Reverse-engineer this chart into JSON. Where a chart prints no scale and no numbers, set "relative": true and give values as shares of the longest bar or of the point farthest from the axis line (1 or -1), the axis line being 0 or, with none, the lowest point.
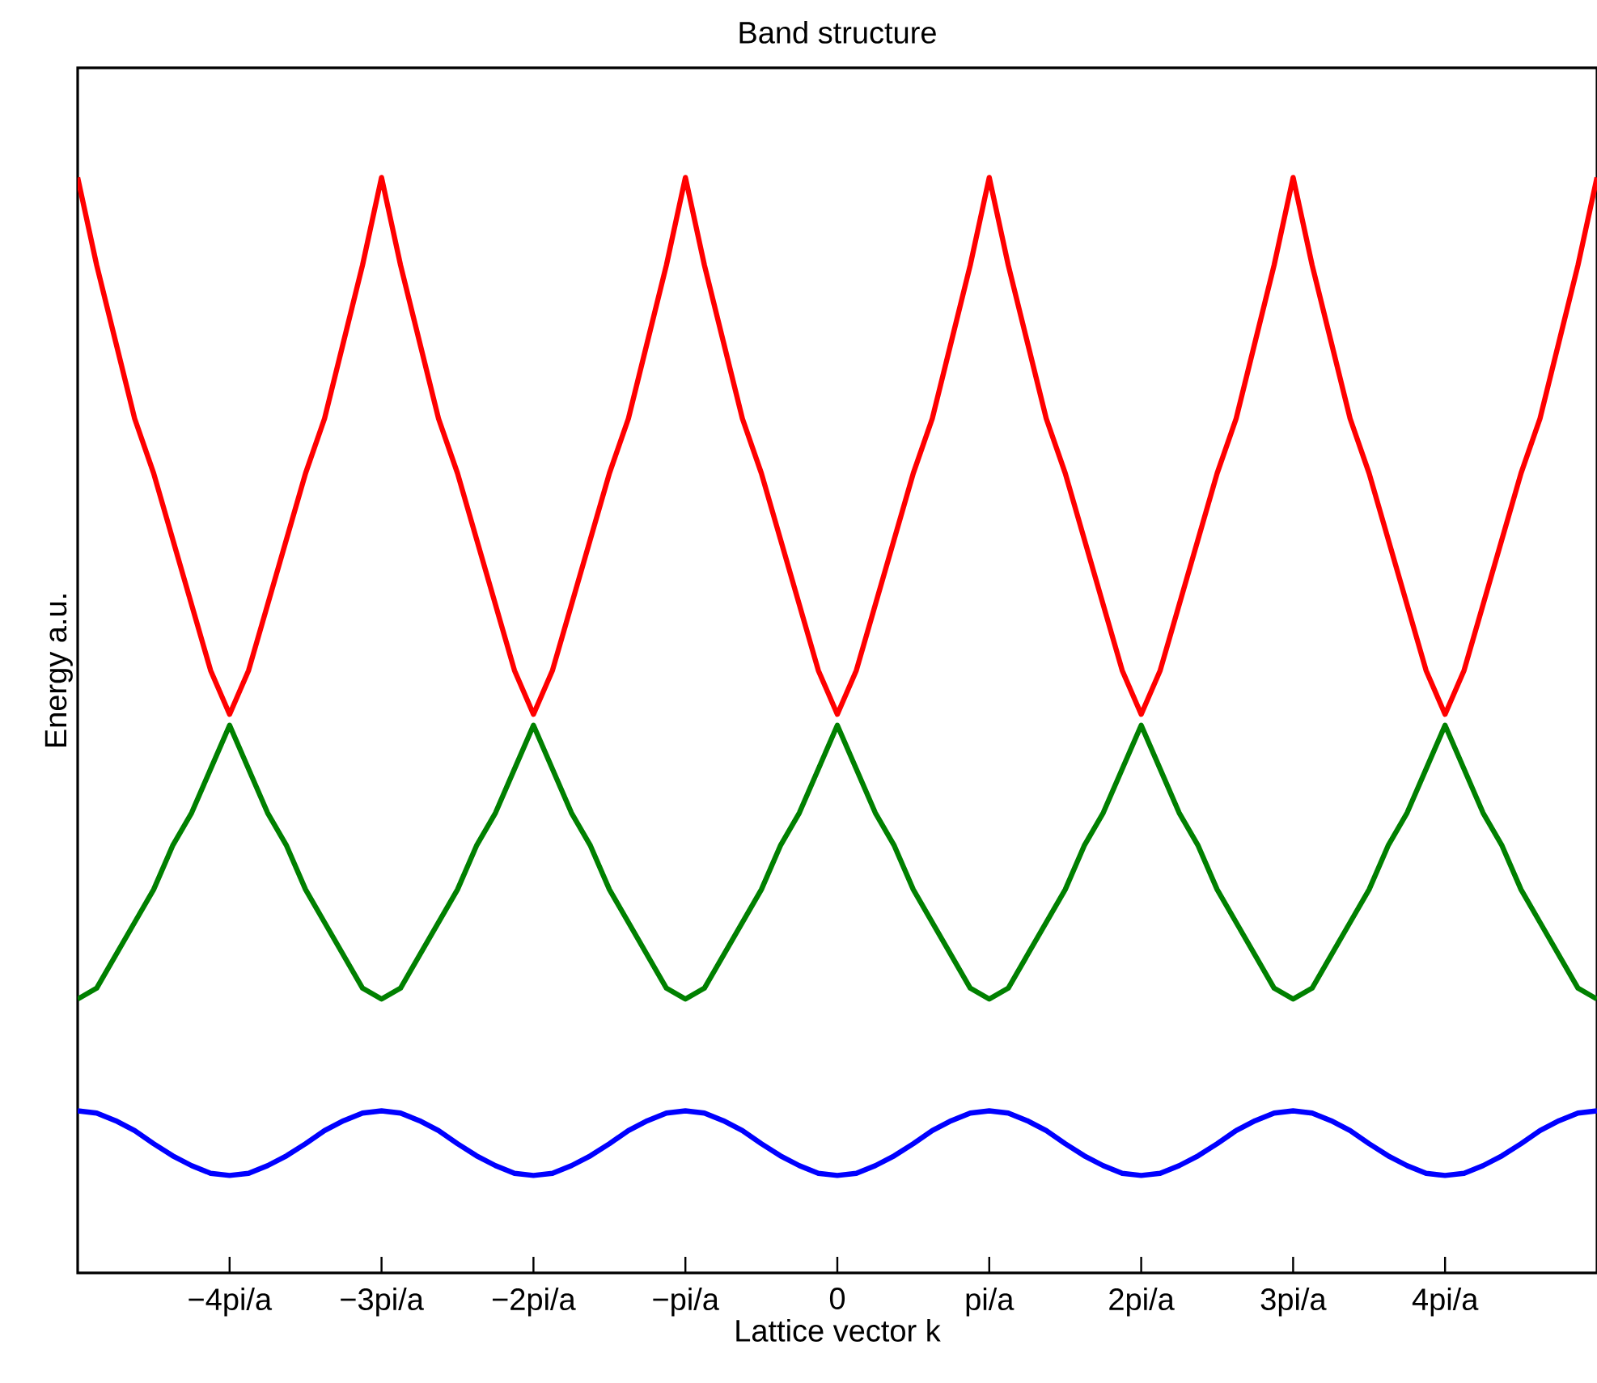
{
  "chart_data": {
    "type": "line",
    "title": "Band structure",
    "xlabel": "Lattice vector k",
    "ylabel": "Energy a.u.",
    "relative": true,
    "xlim": [
      -5,
      5
    ],
    "xticks": [
      {
        "value": -4,
        "label": "−4pi/a"
      },
      {
        "value": -3,
        "label": "−3pi/a"
      },
      {
        "value": -2,
        "label": "−2pi/a"
      },
      {
        "value": -1,
        "label": "−pi/a"
      },
      0,
      {
        "value": 1,
        "label": "pi/a"
      },
      {
        "value": 2,
        "label": "2pi/a"
      },
      {
        "value": 3,
        "label": "3pi/a"
      },
      {
        "value": 4,
        "label": "4pi/a"
      }
    ],
    "grid": false,
    "marker": "none",
    "line_style": "solid",
    "x": [
      -5,
      -4.875,
      -4.75,
      -4.625,
      -4.5,
      -4.375,
      -4.25,
      -4.125,
      -4,
      -3.875,
      -3.75,
      -3.625,
      -3.5,
      -3.375,
      -3.25,
      -3.125,
      -3,
      -2.875,
      -2.75,
      -2.625,
      -2.5,
      -2.375,
      -2.25,
      -2.125,
      -2,
      -1.875,
      -1.75,
      -1.625,
      -1.5,
      -1.375,
      -1.25,
      -1.125,
      -1,
      -0.875,
      -0.75,
      -0.625,
      -0.5,
      -0.375,
      -0.25,
      -0.125,
      0,
      0.125,
      0.25,
      0.375,
      0.5,
      0.625,
      0.75,
      0.875,
      1,
      1.125,
      1.25,
      1.375,
      1.5,
      1.625,
      1.75,
      1.875,
      2,
      2.125,
      2.25,
      2.375,
      2.5,
      2.625,
      2.75,
      2.875,
      3,
      3.125,
      3.25,
      3.375,
      3.5,
      3.625,
      3.75,
      3.875,
      4,
      4.125,
      4.25,
      4.375,
      4.5,
      4.625,
      4.75,
      4.875,
      5
    ],
    "series": [
      {
        "color": "#ff0000",
        "values": [
          1,
          0.92,
          0.85,
          0.78,
          0.73,
          0.67,
          0.61,
          0.55,
          0.51,
          0.55,
          0.61,
          0.67,
          0.73,
          0.78,
          0.85,
          0.92,
          1,
          0.92,
          0.85,
          0.78,
          0.73,
          0.67,
          0.61,
          0.55,
          0.51,
          0.55,
          0.61,
          0.67,
          0.73,
          0.78,
          0.85,
          0.92,
          1,
          0.92,
          0.85,
          0.78,
          0.73,
          0.67,
          0.61,
          0.55,
          0.51,
          0.55,
          0.61,
          0.67,
          0.73,
          0.78,
          0.85,
          0.92,
          1,
          0.92,
          0.85,
          0.78,
          0.73,
          0.67,
          0.61,
          0.55,
          0.51,
          0.55,
          0.61,
          0.67,
          0.73,
          0.78,
          0.85,
          0.92,
          1,
          0.92,
          0.85,
          0.78,
          0.73,
          0.67,
          0.61,
          0.55,
          0.51,
          0.55,
          0.61,
          0.67,
          0.73,
          0.78,
          0.85,
          0.92,
          1
        ]
      },
      {
        "color": "#008000",
        "values": [
          0.25,
          0.26,
          0.29,
          0.32,
          0.35,
          0.39,
          0.42,
          0.46,
          0.5,
          0.46,
          0.42,
          0.39,
          0.35,
          0.32,
          0.29,
          0.26,
          0.25,
          0.26,
          0.29,
          0.32,
          0.35,
          0.39,
          0.42,
          0.46,
          0.5,
          0.46,
          0.42,
          0.39,
          0.35,
          0.32,
          0.29,
          0.26,
          0.25,
          0.26,
          0.29,
          0.32,
          0.35,
          0.39,
          0.42,
          0.46,
          0.5,
          0.46,
          0.42,
          0.39,
          0.35,
          0.32,
          0.29,
          0.26,
          0.25,
          0.26,
          0.29,
          0.32,
          0.35,
          0.39,
          0.42,
          0.46,
          0.5,
          0.46,
          0.42,
          0.39,
          0.35,
          0.32,
          0.29,
          0.26,
          0.25,
          0.26,
          0.29,
          0.32,
          0.35,
          0.39,
          0.42,
          0.46,
          0.5,
          0.46,
          0.42,
          0.39,
          0.35,
          0.32,
          0.29,
          0.26,
          0.25
        ]
      },
      {
        "color": "#0000ff",
        "values": [
          0.148,
          0.146,
          0.139,
          0.13,
          0.118,
          0.107,
          0.098,
          0.091,
          0.089,
          0.091,
          0.098,
          0.107,
          0.118,
          0.13,
          0.139,
          0.146,
          0.148,
          0.146,
          0.139,
          0.13,
          0.118,
          0.107,
          0.098,
          0.091,
          0.089,
          0.091,
          0.098,
          0.107,
          0.118,
          0.13,
          0.139,
          0.146,
          0.148,
          0.146,
          0.139,
          0.13,
          0.118,
          0.107,
          0.098,
          0.091,
          0.089,
          0.091,
          0.098,
          0.107,
          0.118,
          0.13,
          0.139,
          0.146,
          0.148,
          0.146,
          0.139,
          0.13,
          0.118,
          0.107,
          0.098,
          0.091,
          0.089,
          0.091,
          0.098,
          0.107,
          0.118,
          0.13,
          0.139,
          0.146,
          0.148,
          0.146,
          0.139,
          0.13,
          0.118,
          0.107,
          0.098,
          0.091,
          0.089,
          0.091,
          0.098,
          0.107,
          0.118,
          0.13,
          0.139,
          0.146,
          0.148
        ]
      }
    ]
  }
}
